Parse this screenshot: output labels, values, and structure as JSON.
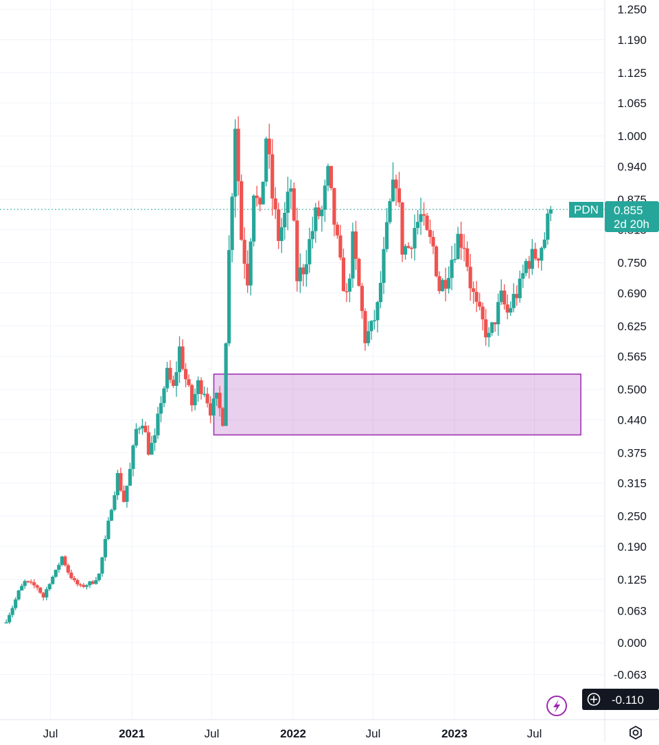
{
  "chart_data": {
    "type": "candlestick",
    "symbol": "PDN",
    "last_price": "0.855",
    "countdown": "2d 20h",
    "cursor_price": "-0.110",
    "ylim": [
      -0.14,
      1.27
    ],
    "y_ticks": [
      "1.250",
      "1.190",
      "1.125",
      "1.065",
      "1.000",
      "0.940",
      "0.875",
      "0.815",
      "0.750",
      "0.690",
      "0.625",
      "0.565",
      "0.500",
      "0.440",
      "0.375",
      "0.315",
      "0.250",
      "0.190",
      "0.125",
      "0.063",
      "0.000",
      "-0.063"
    ],
    "x_ticks": [
      {
        "label": "Jul",
        "date": "2020-07-01",
        "year": false
      },
      {
        "label": "2021",
        "date": "2021-01-01",
        "year": true
      },
      {
        "label": "Jul",
        "date": "2021-07-01",
        "year": false
      },
      {
        "label": "2022",
        "date": "2022-01-01",
        "year": true
      },
      {
        "label": "Jul",
        "date": "2022-07-01",
        "year": false
      },
      {
        "label": "2023",
        "date": "2023-01-01",
        "year": true
      },
      {
        "label": "Jul",
        "date": "2023-07-01",
        "year": false
      }
    ],
    "price_line": 0.855,
    "zone": {
      "from": "2021-08-01",
      "to": "2023-10-14",
      "low": 0.41,
      "high": 0.53,
      "color": "#9c27b0"
    },
    "up_color": "#26a69a",
    "down_color": "#ef5350",
    "weekly_closes": [
      [
        "2020-03-23",
        0.045
      ],
      [
        "2020-04-06",
        0.07
      ],
      [
        "2020-04-20",
        0.1
      ],
      [
        "2020-05-04",
        0.12
      ],
      [
        "2020-05-18",
        0.115
      ],
      [
        "2020-06-01",
        0.11
      ],
      [
        "2020-06-15",
        0.09
      ],
      [
        "2020-06-29",
        0.12
      ],
      [
        "2020-07-13",
        0.14
      ],
      [
        "2020-07-27",
        0.17
      ],
      [
        "2020-08-10",
        0.14
      ],
      [
        "2020-08-24",
        0.12
      ],
      [
        "2020-09-07",
        0.11
      ],
      [
        "2020-09-21",
        0.115
      ],
      [
        "2020-10-05",
        0.12
      ],
      [
        "2020-10-19",
        0.135
      ],
      [
        "2020-11-02",
        0.2
      ],
      [
        "2020-11-16",
        0.27
      ],
      [
        "2020-11-30",
        0.33
      ],
      [
        "2020-12-14",
        0.28
      ],
      [
        "2020-12-28",
        0.34
      ],
      [
        "2021-01-11",
        0.42
      ],
      [
        "2021-01-25",
        0.44
      ],
      [
        "2021-02-08",
        0.38
      ],
      [
        "2021-02-22",
        0.4
      ],
      [
        "2021-03-08",
        0.48
      ],
      [
        "2021-03-22",
        0.53
      ],
      [
        "2021-04-05",
        0.5
      ],
      [
        "2021-04-19",
        0.58
      ],
      [
        "2021-05-03",
        0.52
      ],
      [
        "2021-05-17",
        0.47
      ],
      [
        "2021-05-31",
        0.51
      ],
      [
        "2021-06-14",
        0.5
      ],
      [
        "2021-06-28",
        0.46
      ],
      [
        "2021-07-12",
        0.48
      ],
      [
        "2021-07-26",
        0.44
      ],
      [
        "2021-08-09",
        0.77
      ],
      [
        "2021-08-23",
        1.03
      ],
      [
        "2021-09-06",
        0.8
      ],
      [
        "2021-09-20",
        0.72
      ],
      [
        "2021-10-04",
        0.9
      ],
      [
        "2021-10-18",
        0.84
      ],
      [
        "2021-11-01",
        1.0
      ],
      [
        "2021-11-15",
        0.88
      ],
      [
        "2021-11-29",
        0.8
      ],
      [
        "2021-12-13",
        0.84
      ],
      [
        "2021-12-27",
        0.9
      ],
      [
        "2022-01-10",
        0.72
      ],
      [
        "2022-01-24",
        0.74
      ],
      [
        "2022-02-07",
        0.79
      ],
      [
        "2022-02-21",
        0.84
      ],
      [
        "2022-03-07",
        0.85
      ],
      [
        "2022-03-21",
        0.92
      ],
      [
        "2022-04-04",
        0.83
      ],
      [
        "2022-04-18",
        0.74
      ],
      [
        "2022-05-02",
        0.68
      ],
      [
        "2022-05-16",
        0.79
      ],
      [
        "2022-05-30",
        0.7
      ],
      [
        "2022-06-13",
        0.6
      ],
      [
        "2022-06-27",
        0.62
      ],
      [
        "2022-07-11",
        0.66
      ],
      [
        "2022-07-25",
        0.76
      ],
      [
        "2022-08-08",
        0.86
      ],
      [
        "2022-08-22",
        0.92
      ],
      [
        "2022-09-05",
        0.78
      ],
      [
        "2022-09-19",
        0.78
      ],
      [
        "2022-10-03",
        0.82
      ],
      [
        "2022-10-17",
        0.84
      ],
      [
        "2022-10-31",
        0.8
      ],
      [
        "2022-11-14",
        0.78
      ],
      [
        "2022-11-28",
        0.7
      ],
      [
        "2022-12-12",
        0.72
      ],
      [
        "2022-12-26",
        0.76
      ],
      [
        "2023-01-09",
        0.8
      ],
      [
        "2023-01-23",
        0.79
      ],
      [
        "2023-02-06",
        0.71
      ],
      [
        "2023-02-20",
        0.66
      ],
      [
        "2023-03-06",
        0.63
      ],
      [
        "2023-03-20",
        0.6
      ],
      [
        "2023-04-03",
        0.64
      ],
      [
        "2023-04-17",
        0.68
      ],
      [
        "2023-05-01",
        0.65
      ],
      [
        "2023-05-15",
        0.68
      ],
      [
        "2023-05-29",
        0.7
      ],
      [
        "2023-06-12",
        0.75
      ],
      [
        "2023-06-26",
        0.76
      ],
      [
        "2023-07-10",
        0.77
      ],
      [
        "2023-07-24",
        0.8
      ],
      [
        "2023-08-07",
        0.86
      ]
    ]
  }
}
